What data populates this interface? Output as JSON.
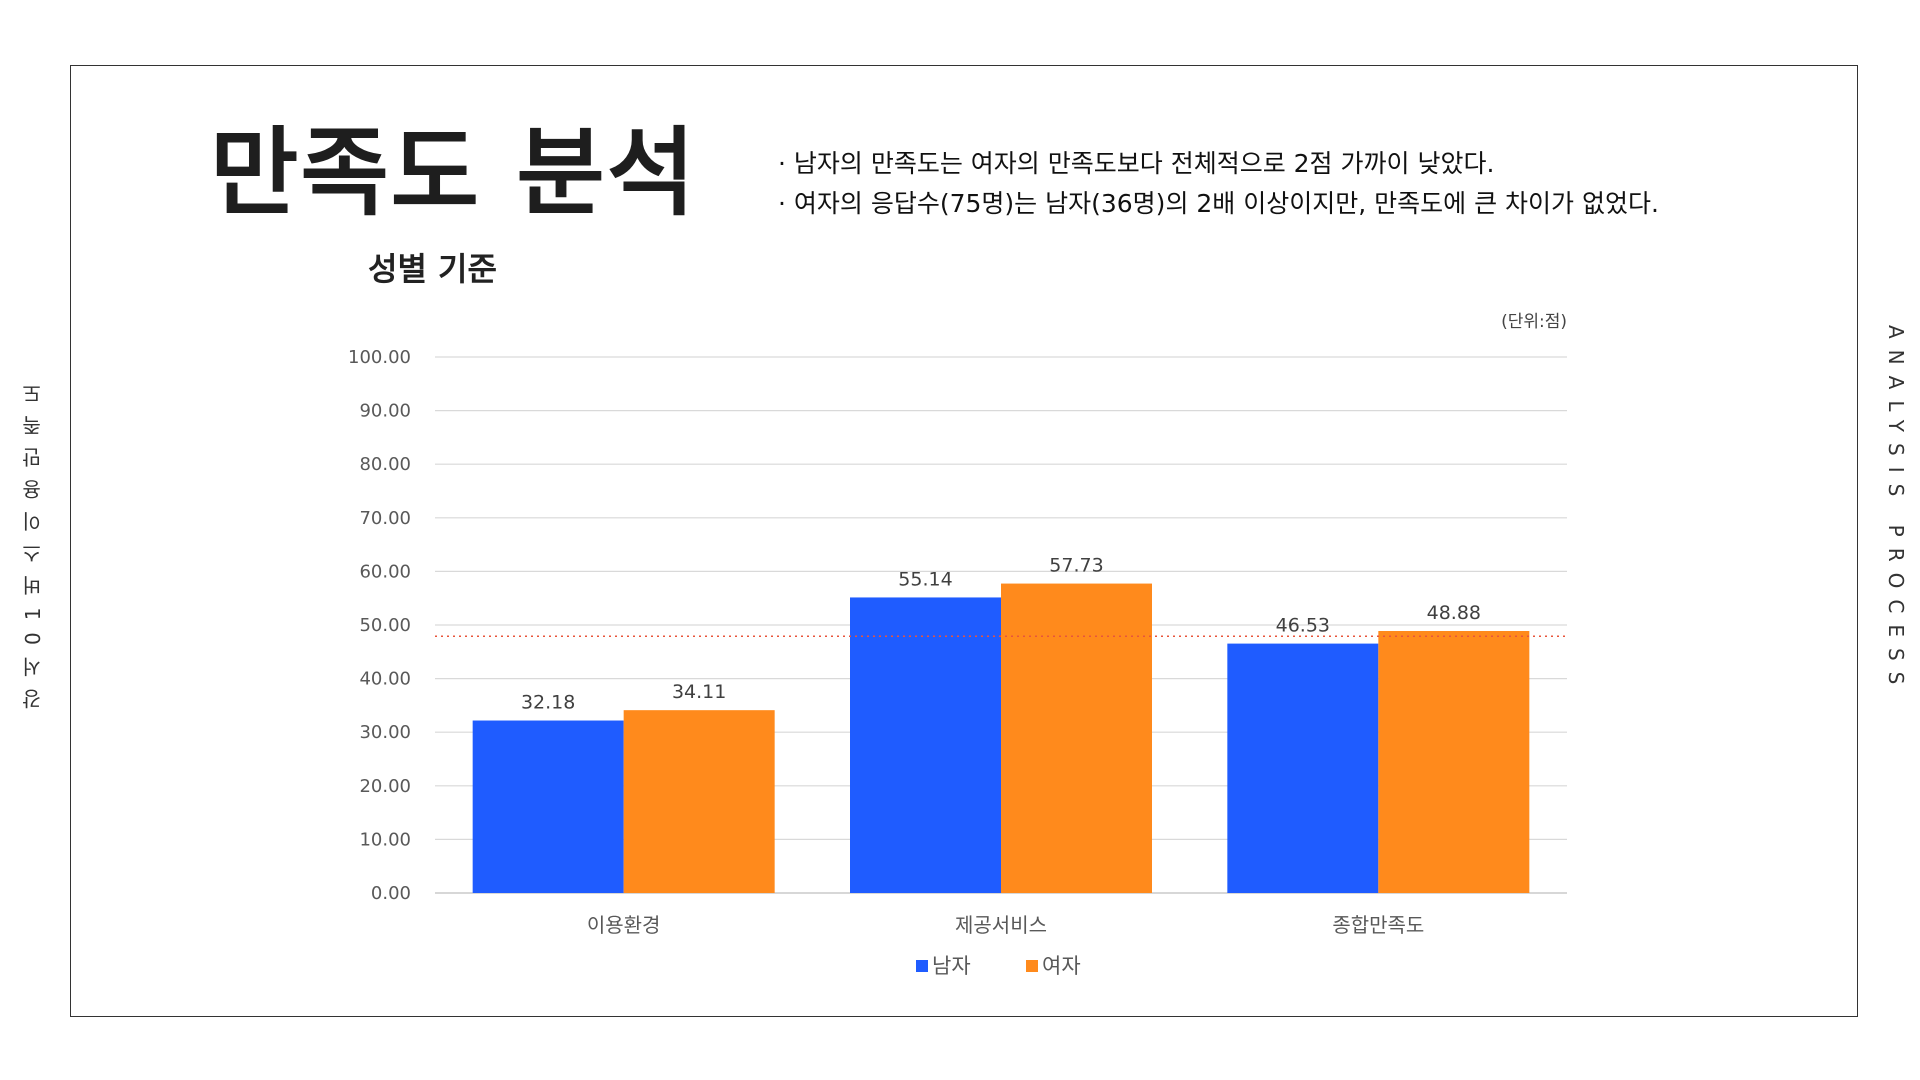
{
  "title": "만족도 분석",
  "subtitle": "성별 기준",
  "notes": [
    "남자의 만족도는 여자의 만족도보다 전체적으로 2점 가까이 낮았다.",
    "여자의 응답수(75명)는 남자(36명)의 2배 이상이지만, 만족도에 큰 차이가 없었다."
  ],
  "side_left": "강서01버스이용만족도",
  "side_right": "ANALYSIS PROCESS",
  "colors": {
    "male": "#1f5cff",
    "female": "#ff8a1c",
    "reference_line": "#e8553b",
    "grid": "#d9d9d9"
  },
  "chart_data": {
    "type": "bar",
    "unit_label": "(단위:점)",
    "categories": [
      "이용환경",
      "제공서비스",
      "종합만족도"
    ],
    "series": [
      {
        "name": "남자",
        "values": [
          32.18,
          55.14,
          46.53
        ]
      },
      {
        "name": "여자",
        "values": [
          34.11,
          57.73,
          48.88
        ]
      }
    ],
    "value_labels": [
      [
        "32.18",
        "55.14",
        "46.53"
      ],
      [
        "34.11",
        "57.73",
        "48.88"
      ]
    ],
    "y_ticks": [
      "0.00",
      "10.00",
      "20.00",
      "30.00",
      "40.00",
      "50.00",
      "60.00",
      "70.00",
      "80.00",
      "90.00",
      "100.00"
    ],
    "ylim": [
      0,
      100
    ],
    "y_step": 10,
    "reference_line": 47.9,
    "grid": true,
    "legend_position": "bottom"
  }
}
